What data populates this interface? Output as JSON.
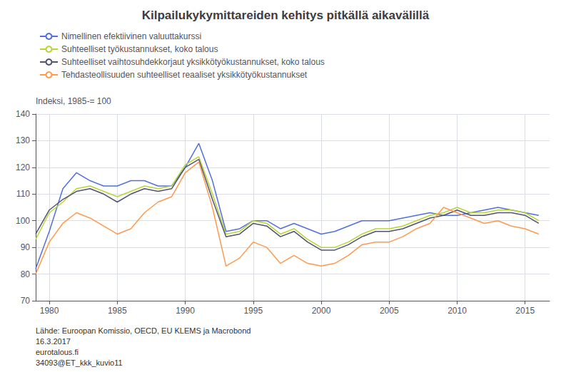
{
  "chart_data": {
    "type": "line",
    "title": "Kilpailukykymittareiden kehitys pitkällä aikavälillä",
    "ylabel": "Indeksi, 1985-= 100",
    "x": [
      1979,
      1980,
      1981,
      1982,
      1983,
      1984,
      1985,
      1986,
      1987,
      1988,
      1989,
      1990,
      1991,
      1992,
      1993,
      1994,
      1995,
      1996,
      1997,
      1998,
      1999,
      2000,
      2001,
      2002,
      2003,
      2004,
      2005,
      2006,
      2007,
      2008,
      2009,
      2010,
      2011,
      2012,
      2013,
      2014,
      2015,
      2016
    ],
    "series": [
      {
        "name": "Nimellinen efektiivinen valuuttakurssi",
        "values": [
          82,
          96,
          112,
          118,
          115,
          113,
          113,
          115,
          115,
          113,
          113,
          120,
          129,
          115,
          96,
          97,
          100,
          100,
          97,
          99,
          97,
          95,
          96,
          98,
          100,
          100,
          100,
          101,
          102,
          103,
          102,
          102,
          103,
          104,
          105,
          104,
          103,
          102
        ]
      },
      {
        "name": "Suhteelliset työkustannukset, koko talous",
        "values": [
          93,
          103,
          107,
          112,
          113,
          111,
          109,
          111,
          113,
          112,
          113,
          121,
          124,
          110,
          95,
          96,
          100,
          99,
          95,
          97,
          93,
          90,
          90,
          92,
          95,
          97,
          97,
          98,
          100,
          102,
          103,
          105,
          103,
          103,
          104,
          104,
          103,
          100
        ]
      },
      {
        "name": "Suhteelliset vaihtosuhdekkorjaut yksikkötyökustannukset, koko talous",
        "values": [
          95,
          104,
          108,
          111,
          112,
          110,
          107,
          110,
          112,
          111,
          112,
          120,
          123,
          108,
          94,
          95,
          99,
          98,
          94,
          96,
          92,
          89,
          89,
          91,
          94,
          96,
          96,
          97,
          99,
          101,
          102,
          104,
          102,
          102,
          103,
          103,
          102,
          99
        ]
      },
      {
        "name": "Tehdasteollisuuden suhteelliset reaaliset yksikkötyökustannukset",
        "values": [
          80,
          92,
          99,
          103,
          101,
          98,
          95,
          97,
          103,
          107,
          109,
          118,
          122,
          105,
          83,
          86,
          92,
          90,
          84,
          87,
          84,
          83,
          84,
          87,
          91,
          92,
          92,
          94,
          97,
          99,
          105,
          103,
          101,
          99,
          100,
          98,
          97,
          95
        ]
      }
    ],
    "xlim": [
      1979.0,
      2016.8
    ],
    "xticks": [
      1980,
      1985,
      1990,
      1995,
      2000,
      2005,
      2010,
      2015
    ],
    "ylim": [
      70,
      140
    ],
    "yticks": [
      70,
      80,
      90,
      100,
      110,
      120,
      130,
      140
    ],
    "annotations": [
      "Lähde: Euroopan Komissio, OECD, EU KLEMS ja Macrobond",
      "16.3.2017",
      "eurotalous.fi",
      "34093@ET_kkk_kuvio11"
    ],
    "grid": true,
    "legend": "upper left"
  }
}
